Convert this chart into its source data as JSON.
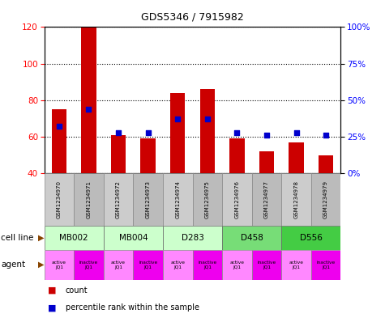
{
  "title": "GDS5346 / 7915982",
  "samples": [
    "GSM1234970",
    "GSM1234971",
    "GSM1234972",
    "GSM1234973",
    "GSM1234974",
    "GSM1234975",
    "GSM1234976",
    "GSM1234977",
    "GSM1234978",
    "GSM1234979"
  ],
  "counts": [
    75,
    120,
    61,
    59,
    84,
    86,
    59,
    52,
    57,
    50
  ],
  "percentiles": [
    32,
    44,
    28,
    28,
    37,
    37,
    28,
    26,
    28,
    26
  ],
  "cell_lines": [
    {
      "label": "MB002",
      "span": [
        0,
        2
      ],
      "color": "#ccffcc"
    },
    {
      "label": "MB004",
      "span": [
        2,
        4
      ],
      "color": "#ccffcc"
    },
    {
      "label": "D283",
      "span": [
        4,
        6
      ],
      "color": "#ccffcc"
    },
    {
      "label": "D458",
      "span": [
        6,
        8
      ],
      "color": "#77dd77"
    },
    {
      "label": "D556",
      "span": [
        8,
        10
      ],
      "color": "#44cc44"
    }
  ],
  "agents": [
    "active\nJQ1",
    "inactive\nJQ1",
    "active\nJQ1",
    "inactive\nJQ1",
    "active\nJQ1",
    "inactive\nJQ1",
    "active\nJQ1",
    "inactive\nJQ1",
    "active\nJQ1",
    "inactive\nJQ1"
  ],
  "agent_colors_active": "#ff88ff",
  "agent_colors_inactive": "#ee00ee",
  "bar_color": "#cc0000",
  "dot_color": "#0000cc",
  "ylim_left": [
    40,
    120
  ],
  "ylim_right": [
    0,
    100
  ],
  "yticks_left": [
    40,
    60,
    80,
    100,
    120
  ],
  "yticks_right": [
    0,
    25,
    50,
    75,
    100
  ],
  "ytick_labels_right": [
    "0%",
    "25%",
    "50%",
    "75%",
    "100%"
  ],
  "bar_bottom": 40,
  "dot_size": 22
}
